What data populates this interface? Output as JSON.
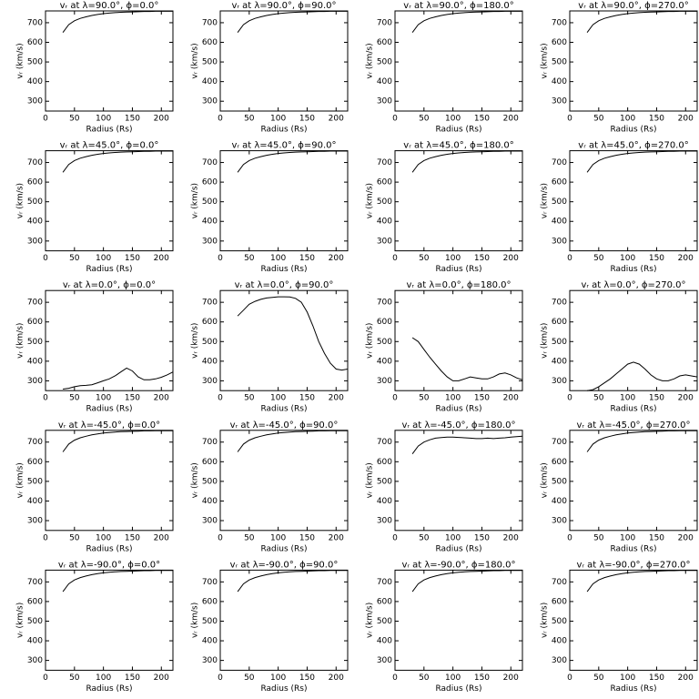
{
  "chart_data": [
    {
      "type": "line",
      "title": "vᵣ at λ=90.0°, ϕ=0.0°",
      "xlabel": "Radius (Rs)",
      "ylabel": "vᵣ (km/s)",
      "x": [
        30,
        40,
        50,
        60,
        70,
        80,
        90,
        100,
        110,
        120,
        130,
        140,
        150,
        160,
        170,
        180,
        190,
        200,
        210,
        220
      ],
      "values": [
        650,
        690,
        710,
        722,
        730,
        737,
        742,
        746,
        749,
        751,
        753,
        754,
        755,
        756,
        757,
        757,
        758,
        758,
        758,
        758
      ],
      "color": "#000000",
      "xlim": [
        0,
        220
      ],
      "ylim": [
        250,
        760
      ],
      "xticks": [
        0,
        50,
        100,
        150,
        200
      ],
      "yticks": [
        300,
        400,
        500,
        600,
        700
      ]
    },
    {
      "type": "line",
      "title": "vᵣ at λ=90.0°, ϕ=90.0°",
      "xlabel": "Radius (Rs)",
      "ylabel": "vᵣ (km/s)",
      "x": [
        30,
        40,
        50,
        60,
        70,
        80,
        90,
        100,
        110,
        120,
        130,
        140,
        150,
        160,
        170,
        180,
        190,
        200,
        210,
        220
      ],
      "values": [
        650,
        690,
        710,
        722,
        730,
        737,
        742,
        746,
        749,
        751,
        753,
        754,
        755,
        756,
        757,
        757,
        758,
        758,
        758,
        758
      ],
      "color": "#000000",
      "xlim": [
        0,
        220
      ],
      "ylim": [
        250,
        760
      ],
      "xticks": [
        0,
        50,
        100,
        150,
        200
      ],
      "yticks": [
        300,
        400,
        500,
        600,
        700
      ]
    },
    {
      "type": "line",
      "title": "vᵣ at λ=90.0°, ϕ=180.0°",
      "xlabel": "Radius (Rs)",
      "ylabel": "vᵣ (km/s)",
      "x": [
        30,
        40,
        50,
        60,
        70,
        80,
        90,
        100,
        110,
        120,
        130,
        140,
        150,
        160,
        170,
        180,
        190,
        200,
        210,
        220
      ],
      "values": [
        650,
        690,
        710,
        722,
        730,
        737,
        742,
        746,
        749,
        751,
        753,
        754,
        755,
        756,
        757,
        757,
        758,
        758,
        758,
        758
      ],
      "color": "#000000",
      "xlim": [
        0,
        220
      ],
      "ylim": [
        250,
        760
      ],
      "xticks": [
        0,
        50,
        100,
        150,
        200
      ],
      "yticks": [
        300,
        400,
        500,
        600,
        700
      ]
    },
    {
      "type": "line",
      "title": "vᵣ at λ=90.0°, ϕ=270.0°",
      "xlabel": "Radius (Rs)",
      "ylabel": "vᵣ (km/s)",
      "x": [
        30,
        40,
        50,
        60,
        70,
        80,
        90,
        100,
        110,
        120,
        130,
        140,
        150,
        160,
        170,
        180,
        190,
        200,
        210,
        220
      ],
      "values": [
        650,
        690,
        710,
        722,
        730,
        737,
        742,
        746,
        749,
        751,
        753,
        754,
        755,
        756,
        757,
        757,
        758,
        758,
        758,
        758
      ],
      "color": "#000000",
      "xlim": [
        0,
        220
      ],
      "ylim": [
        250,
        760
      ],
      "xticks": [
        0,
        50,
        100,
        150,
        200
      ],
      "yticks": [
        300,
        400,
        500,
        600,
        700
      ]
    },
    {
      "type": "line",
      "title": "vᵣ at λ=45.0°, ϕ=0.0°",
      "xlabel": "Radius (Rs)",
      "ylabel": "vᵣ (km/s)",
      "x": [
        30,
        40,
        50,
        60,
        70,
        80,
        90,
        100,
        110,
        120,
        130,
        140,
        150,
        160,
        170,
        180,
        190,
        200,
        210,
        220
      ],
      "values": [
        650,
        690,
        710,
        722,
        730,
        737,
        742,
        746,
        749,
        751,
        753,
        754,
        755,
        756,
        757,
        757,
        758,
        758,
        758,
        758
      ],
      "color": "#000000",
      "xlim": [
        0,
        220
      ],
      "ylim": [
        250,
        760
      ],
      "xticks": [
        0,
        50,
        100,
        150,
        200
      ],
      "yticks": [
        300,
        400,
        500,
        600,
        700
      ]
    },
    {
      "type": "line",
      "title": "vᵣ at λ=45.0°, ϕ=90.0°",
      "xlabel": "Radius (Rs)",
      "ylabel": "vᵣ (km/s)",
      "x": [
        30,
        40,
        50,
        60,
        70,
        80,
        90,
        100,
        110,
        120,
        130,
        140,
        150,
        160,
        170,
        180,
        190,
        200,
        210,
        220
      ],
      "values": [
        650,
        690,
        710,
        722,
        730,
        737,
        742,
        746,
        749,
        751,
        753,
        754,
        755,
        756,
        757,
        757,
        758,
        758,
        758,
        758
      ],
      "color": "#000000",
      "xlim": [
        0,
        220
      ],
      "ylim": [
        250,
        760
      ],
      "xticks": [
        0,
        50,
        100,
        150,
        200
      ],
      "yticks": [
        300,
        400,
        500,
        600,
        700
      ]
    },
    {
      "type": "line",
      "title": "vᵣ at λ=45.0°, ϕ=180.0°",
      "xlabel": "Radius (Rs)",
      "ylabel": "vᵣ (km/s)",
      "x": [
        30,
        40,
        50,
        60,
        70,
        80,
        90,
        100,
        110,
        120,
        130,
        140,
        150,
        160,
        170,
        180,
        190,
        200,
        210,
        220
      ],
      "values": [
        650,
        690,
        710,
        722,
        730,
        737,
        742,
        746,
        749,
        751,
        753,
        754,
        755,
        756,
        757,
        757,
        758,
        758,
        758,
        758
      ],
      "color": "#000000",
      "xlim": [
        0,
        220
      ],
      "ylim": [
        250,
        760
      ],
      "xticks": [
        0,
        50,
        100,
        150,
        200
      ],
      "yticks": [
        300,
        400,
        500,
        600,
        700
      ]
    },
    {
      "type": "line",
      "title": "vᵣ at λ=45.0°, ϕ=270.0°",
      "xlabel": "Radius (Rs)",
      "ylabel": "vᵣ (km/s)",
      "x": [
        30,
        40,
        50,
        60,
        70,
        80,
        90,
        100,
        110,
        120,
        130,
        140,
        150,
        160,
        170,
        180,
        190,
        200,
        210,
        220
      ],
      "values": [
        650,
        690,
        710,
        722,
        730,
        737,
        742,
        746,
        749,
        751,
        753,
        754,
        755,
        756,
        757,
        757,
        758,
        758,
        758,
        758
      ],
      "color": "#000000",
      "xlim": [
        0,
        220
      ],
      "ylim": [
        250,
        760
      ],
      "xticks": [
        0,
        50,
        100,
        150,
        200
      ],
      "yticks": [
        300,
        400,
        500,
        600,
        700
      ]
    },
    {
      "type": "line",
      "title": "vᵣ at λ=0.0°, ϕ=0.0°",
      "xlabel": "Radius (Rs)",
      "ylabel": "vᵣ (km/s)",
      "x": [
        30,
        40,
        50,
        60,
        70,
        80,
        90,
        100,
        110,
        120,
        130,
        140,
        150,
        160,
        170,
        180,
        190,
        200,
        210,
        220
      ],
      "values": [
        258,
        262,
        270,
        275,
        277,
        280,
        290,
        300,
        310,
        325,
        345,
        365,
        350,
        320,
        305,
        305,
        310,
        318,
        330,
        345
      ],
      "color": "#000000",
      "xlim": [
        0,
        220
      ],
      "ylim": [
        250,
        760
      ],
      "xticks": [
        0,
        50,
        100,
        150,
        200
      ],
      "yticks": [
        300,
        400,
        500,
        600,
        700
      ]
    },
    {
      "type": "line",
      "title": "vᵣ at λ=0.0°, ϕ=90.0°",
      "xlabel": "Radius (Rs)",
      "ylabel": "vᵣ (km/s)",
      "x": [
        30,
        40,
        50,
        60,
        70,
        80,
        90,
        100,
        110,
        120,
        130,
        140,
        150,
        160,
        170,
        180,
        190,
        200,
        210,
        220
      ],
      "values": [
        630,
        660,
        690,
        705,
        715,
        722,
        725,
        728,
        728,
        727,
        720,
        700,
        650,
        580,
        500,
        440,
        390,
        360,
        355,
        360
      ],
      "color": "#000000",
      "xlim": [
        0,
        220
      ],
      "ylim": [
        250,
        760
      ],
      "xticks": [
        0,
        50,
        100,
        150,
        200
      ],
      "yticks": [
        300,
        400,
        500,
        600,
        700
      ]
    },
    {
      "type": "line",
      "title": "vᵣ at λ=0.0°, ϕ=180.0°",
      "xlabel": "Radius (Rs)",
      "ylabel": "vᵣ (km/s)",
      "x": [
        30,
        40,
        50,
        60,
        70,
        80,
        90,
        100,
        110,
        120,
        130,
        140,
        150,
        160,
        170,
        180,
        190,
        200,
        210,
        220
      ],
      "values": [
        520,
        500,
        460,
        420,
        385,
        350,
        320,
        300,
        300,
        310,
        320,
        315,
        310,
        310,
        320,
        335,
        340,
        330,
        315,
        305
      ],
      "color": "#000000",
      "xlim": [
        0,
        220
      ],
      "ylim": [
        250,
        760
      ],
      "xticks": [
        0,
        50,
        100,
        150,
        200
      ],
      "yticks": [
        300,
        400,
        500,
        600,
        700
      ]
    },
    {
      "type": "line",
      "title": "vᵣ at λ=0.0°, ϕ=270.0°",
      "xlabel": "Radius (Rs)",
      "ylabel": "vᵣ (km/s)",
      "x": [
        30,
        40,
        50,
        60,
        70,
        80,
        90,
        100,
        110,
        120,
        130,
        140,
        150,
        160,
        170,
        180,
        190,
        200,
        210,
        220
      ],
      "values": [
        250,
        255,
        270,
        290,
        310,
        335,
        360,
        385,
        395,
        385,
        360,
        330,
        310,
        300,
        300,
        310,
        325,
        330,
        325,
        320
      ],
      "color": "#000000",
      "xlim": [
        0,
        220
      ],
      "ylim": [
        250,
        760
      ],
      "xticks": [
        0,
        50,
        100,
        150,
        200
      ],
      "yticks": [
        300,
        400,
        500,
        600,
        700
      ]
    },
    {
      "type": "line",
      "title": "vᵣ at λ=-45.0°, ϕ=0.0°",
      "xlabel": "Radius (Rs)",
      "ylabel": "vᵣ (km/s)",
      "x": [
        30,
        40,
        50,
        60,
        70,
        80,
        90,
        100,
        110,
        120,
        130,
        140,
        150,
        160,
        170,
        180,
        190,
        200,
        210,
        220
      ],
      "values": [
        650,
        690,
        710,
        722,
        730,
        737,
        742,
        746,
        749,
        751,
        753,
        754,
        755,
        756,
        757,
        757,
        758,
        758,
        758,
        758
      ],
      "color": "#000000",
      "xlim": [
        0,
        220
      ],
      "ylim": [
        250,
        760
      ],
      "xticks": [
        0,
        50,
        100,
        150,
        200
      ],
      "yticks": [
        300,
        400,
        500,
        600,
        700
      ]
    },
    {
      "type": "line",
      "title": "vᵣ at λ=-45.0°, ϕ=90.0°",
      "xlabel": "Radius (Rs)",
      "ylabel": "vᵣ (km/s)",
      "x": [
        30,
        40,
        50,
        60,
        70,
        80,
        90,
        100,
        110,
        120,
        130,
        140,
        150,
        160,
        170,
        180,
        190,
        200,
        210,
        220
      ],
      "values": [
        650,
        690,
        710,
        722,
        730,
        737,
        742,
        746,
        749,
        751,
        753,
        754,
        755,
        756,
        757,
        757,
        758,
        758,
        758,
        758
      ],
      "color": "#000000",
      "xlim": [
        0,
        220
      ],
      "ylim": [
        250,
        760
      ],
      "xticks": [
        0,
        50,
        100,
        150,
        200
      ],
      "yticks": [
        300,
        400,
        500,
        600,
        700
      ]
    },
    {
      "type": "line",
      "title": "vᵣ at λ=-45.0°, ϕ=180.0°",
      "xlabel": "Radius (Rs)",
      "ylabel": "vᵣ (km/s)",
      "x": [
        30,
        40,
        50,
        60,
        70,
        80,
        90,
        100,
        110,
        120,
        130,
        140,
        150,
        160,
        170,
        180,
        190,
        200,
        210,
        220
      ],
      "values": [
        640,
        680,
        700,
        712,
        720,
        723,
        725,
        725,
        724,
        722,
        720,
        718,
        718,
        720,
        718,
        720,
        722,
        725,
        728,
        730
      ],
      "color": "#000000",
      "xlim": [
        0,
        220
      ],
      "ylim": [
        250,
        760
      ],
      "xticks": [
        0,
        50,
        100,
        150,
        200
      ],
      "yticks": [
        300,
        400,
        500,
        600,
        700
      ]
    },
    {
      "type": "line",
      "title": "vᵣ at λ=-45.0°, ϕ=270.0°",
      "xlabel": "Radius (Rs)",
      "ylabel": "vᵣ (km/s)",
      "x": [
        30,
        40,
        50,
        60,
        70,
        80,
        90,
        100,
        110,
        120,
        130,
        140,
        150,
        160,
        170,
        180,
        190,
        200,
        210,
        220
      ],
      "values": [
        650,
        690,
        710,
        722,
        730,
        737,
        742,
        746,
        749,
        751,
        753,
        754,
        755,
        756,
        757,
        757,
        758,
        758,
        758,
        758
      ],
      "color": "#000000",
      "xlim": [
        0,
        220
      ],
      "ylim": [
        250,
        760
      ],
      "xticks": [
        0,
        50,
        100,
        150,
        200
      ],
      "yticks": [
        300,
        400,
        500,
        600,
        700
      ]
    },
    {
      "type": "line",
      "title": "vᵣ at λ=-90.0°, ϕ=0.0°",
      "xlabel": "Radius (Rs)",
      "ylabel": "vᵣ (km/s)",
      "x": [
        30,
        40,
        50,
        60,
        70,
        80,
        90,
        100,
        110,
        120,
        130,
        140,
        150,
        160,
        170,
        180,
        190,
        200,
        210,
        220
      ],
      "values": [
        650,
        690,
        710,
        722,
        730,
        737,
        742,
        746,
        749,
        751,
        753,
        754,
        755,
        756,
        757,
        757,
        758,
        758,
        758,
        758
      ],
      "color": "#000000",
      "xlim": [
        0,
        220
      ],
      "ylim": [
        250,
        760
      ],
      "xticks": [
        0,
        50,
        100,
        150,
        200
      ],
      "yticks": [
        300,
        400,
        500,
        600,
        700
      ]
    },
    {
      "type": "line",
      "title": "vᵣ at λ=-90.0°, ϕ=90.0°",
      "xlabel": "Radius (Rs)",
      "ylabel": "vᵣ (km/s)",
      "x": [
        30,
        40,
        50,
        60,
        70,
        80,
        90,
        100,
        110,
        120,
        130,
        140,
        150,
        160,
        170,
        180,
        190,
        200,
        210,
        220
      ],
      "values": [
        650,
        690,
        710,
        722,
        730,
        737,
        742,
        746,
        749,
        751,
        753,
        754,
        755,
        756,
        757,
        757,
        758,
        758,
        758,
        758
      ],
      "color": "#000000",
      "xlim": [
        0,
        220
      ],
      "ylim": [
        250,
        760
      ],
      "xticks": [
        0,
        50,
        100,
        150,
        200
      ],
      "yticks": [
        300,
        400,
        500,
        600,
        700
      ]
    },
    {
      "type": "line",
      "title": "vᵣ at λ=-90.0°, ϕ=180.0°",
      "xlabel": "Radius (Rs)",
      "ylabel": "vᵣ (km/s)",
      "x": [
        30,
        40,
        50,
        60,
        70,
        80,
        90,
        100,
        110,
        120,
        130,
        140,
        150,
        160,
        170,
        180,
        190,
        200,
        210,
        220
      ],
      "values": [
        650,
        690,
        710,
        722,
        730,
        737,
        742,
        746,
        749,
        751,
        753,
        754,
        755,
        756,
        757,
        757,
        758,
        758,
        758,
        758
      ],
      "color": "#000000",
      "xlim": [
        0,
        220
      ],
      "ylim": [
        250,
        760
      ],
      "xticks": [
        0,
        50,
        100,
        150,
        200
      ],
      "yticks": [
        300,
        400,
        500,
        600,
        700
      ]
    },
    {
      "type": "line",
      "title": "vᵣ at λ=-90.0°, ϕ=270.0°",
      "xlabel": "Radius (Rs)",
      "ylabel": "vᵣ (km/s)",
      "x": [
        30,
        40,
        50,
        60,
        70,
        80,
        90,
        100,
        110,
        120,
        130,
        140,
        150,
        160,
        170,
        180,
        190,
        200,
        210,
        220
      ],
      "values": [
        650,
        690,
        710,
        722,
        730,
        737,
        742,
        746,
        749,
        751,
        753,
        754,
        755,
        756,
        757,
        757,
        758,
        758,
        758,
        758
      ],
      "color": "#000000",
      "xlim": [
        0,
        220
      ],
      "ylim": [
        250,
        760
      ],
      "xticks": [
        0,
        50,
        100,
        150,
        200
      ],
      "yticks": [
        300,
        400,
        500,
        600,
        700
      ]
    }
  ]
}
